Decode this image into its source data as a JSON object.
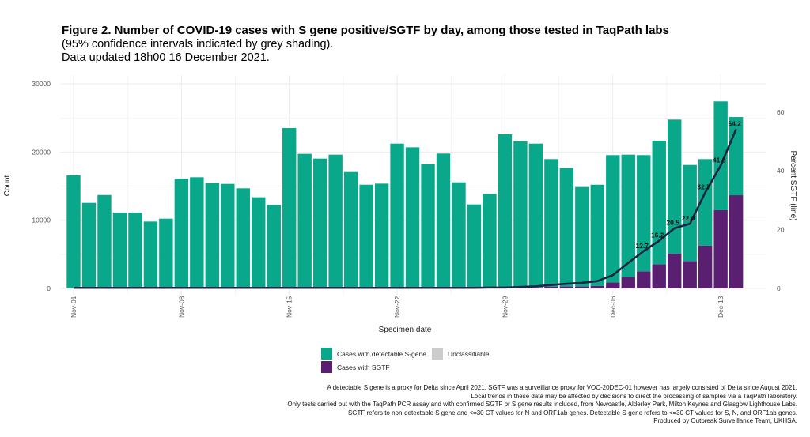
{
  "title": "Figure 2. Number of COVID-19 cases with S gene positive/SGTF by day, among those tested in TaqPath labs",
  "subtitle1": "(95% confidence intervals indicated by grey shading).",
  "subtitle2": "Data updated 18h00 16 December 2021.",
  "legend": {
    "detectable": "Cases with detectable S-gene",
    "unclassifiable": "Unclassifiable",
    "sgtf": "Cases with SGTF"
  },
  "notes": [
    "A detectable S gene is a proxy for Delta since April 2021. SGTF was a surveillance proxy for VOC-20DEC-01 however has largely consisted of Delta since August 2021.",
    "Local trends in these data may be affected by decisions to direct the processing of samples via a TaqPath laboratory.",
    "Only tests carried out with the TaqPath PCR assay and with confirmed SGTF or S gene results included, from Newcastle, Alderley Park, Milton Keynes and Glasgow Lighthouse Labs.",
    "SGTF refers to non-detectable S gene and <=30 CT values for N and ORF1ab genes. Detectable S-gene refers to <=30 CT values for S, N, and ORF1ab genes.",
    "Produced by Outbreak Surveillance Team, UKHSA."
  ],
  "chart_data": {
    "type": "bar",
    "stacked": true,
    "xlabel": "Specimen date",
    "ylabel": "Count",
    "y2label": "Percent SGTF (line)",
    "ylim": [
      0,
      31000
    ],
    "y2lim": [
      0,
      72
    ],
    "yticks": [
      "0",
      "10000",
      "20000",
      "30000"
    ],
    "y2ticks": [
      "0",
      "20",
      "40",
      "60"
    ],
    "xticks": [
      "Nov-01",
      "Nov-08",
      "Nov-15",
      "Nov-22",
      "Nov-29",
      "Dec-06",
      "Dec-13"
    ],
    "grid": true,
    "legend_position": "bottom",
    "colors": {
      "detectable": "#0aa88a",
      "sgtf": "#5b1f72",
      "unclassifiable": "#cccccc",
      "line": "#1c2541"
    },
    "categories": [
      "Nov-01",
      "Nov-02",
      "Nov-03",
      "Nov-04",
      "Nov-05",
      "Nov-06",
      "Nov-07",
      "Nov-08",
      "Nov-09",
      "Nov-10",
      "Nov-11",
      "Nov-12",
      "Nov-13",
      "Nov-14",
      "Nov-15",
      "Nov-16",
      "Nov-17",
      "Nov-18",
      "Nov-19",
      "Nov-20",
      "Nov-21",
      "Nov-22",
      "Nov-23",
      "Nov-24",
      "Nov-25",
      "Nov-26",
      "Nov-27",
      "Nov-28",
      "Nov-29",
      "Nov-30",
      "Dec-01",
      "Dec-02",
      "Dec-03",
      "Dec-04",
      "Dec-05",
      "Dec-06",
      "Dec-07",
      "Dec-08",
      "Dec-09",
      "Dec-10",
      "Dec-11",
      "Dec-12",
      "Dec-13",
      "Dec-14"
    ],
    "series": [
      {
        "name": "Cases with SGTF",
        "values": [
          30,
          25,
          25,
          20,
          20,
          20,
          20,
          30,
          30,
          30,
          30,
          30,
          25,
          25,
          40,
          40,
          40,
          40,
          35,
          30,
          30,
          40,
          40,
          40,
          40,
          35,
          30,
          35,
          60,
          100,
          150,
          230,
          280,
          280,
          380,
          890,
          1700,
          2510,
          3550,
          5100,
          4020,
          6260,
          11470,
          13670
        ]
      },
      {
        "name": "Cases with detectable S-gene",
        "values": [
          16570,
          12525,
          13675,
          11100,
          11100,
          9790,
          10210,
          16070,
          16270,
          15420,
          15300,
          14650,
          13345,
          12225,
          23480,
          19700,
          19000,
          19580,
          17035,
          15180,
          15340,
          21200,
          20660,
          18190,
          19740,
          15525,
          12290,
          13835,
          22540,
          21490,
          21090,
          18740,
          17370,
          14590,
          14830,
          18660,
          17920,
          17040,
          18120,
          19660,
          14090,
          12710,
          15960,
          11470
        ]
      }
    ],
    "line": {
      "name": "Percent SGTF",
      "values": [
        0.2,
        0.2,
        0.2,
        0.2,
        0.2,
        0.2,
        0.2,
        0.2,
        0.2,
        0.2,
        0.2,
        0.2,
        0.2,
        0.2,
        0.2,
        0.2,
        0.2,
        0.2,
        0.2,
        0.2,
        0.2,
        0.2,
        0.2,
        0.2,
        0.2,
        0.2,
        0.2,
        0.3,
        0.3,
        0.5,
        0.7,
        1.2,
        1.6,
        1.9,
        2.5,
        4.5,
        8.7,
        12.7,
        16.2,
        20.5,
        22.0,
        32.7,
        41.8,
        54.2
      ],
      "labels": {
        "37": "12.7",
        "38": "16.2",
        "39": "20.5",
        "40": "22.0",
        "41": "32.7",
        "42": "41.8",
        "43": "54.2"
      }
    }
  }
}
